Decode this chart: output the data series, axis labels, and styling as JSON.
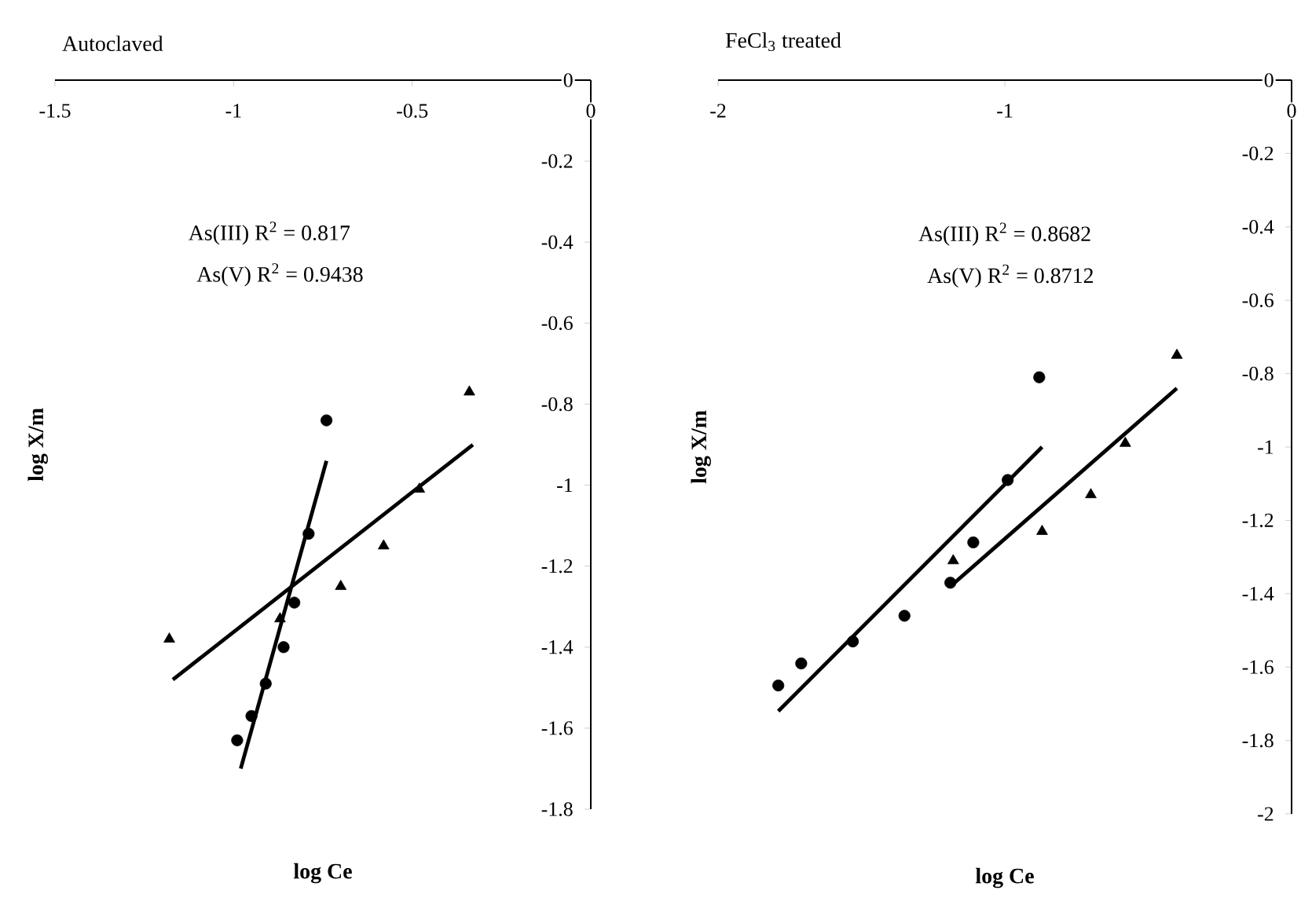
{
  "chart_data": [
    {
      "type": "scatter",
      "title": "Autoclaved",
      "xlabel": "log Ce",
      "ylabel": "log X/m",
      "annotations": [
        "As(III) R$^{2}$ = 0.817",
        "As(V) R$^{2}$ = 0.9438"
      ],
      "xlim": [
        -1.5,
        0
      ],
      "ylim": [
        -1.8,
        0
      ],
      "xticks": [
        -1.5,
        -1,
        -0.5,
        0
      ],
      "yticks": [
        0,
        -0.2,
        -0.4,
        -0.6,
        -0.8,
        -1,
        -1.2,
        -1.4,
        -1.6,
        -1.8
      ],
      "series": [
        {
          "marker": "circle",
          "color": "#000000",
          "x": [
            -0.99,
            -0.95,
            -0.91,
            -0.86,
            -0.83,
            -0.79,
            -0.74
          ],
          "values": [
            -1.63,
            -1.57,
            -1.49,
            -1.4,
            -1.29,
            -1.12,
            -0.84
          ]
        },
        {
          "marker": "triangle",
          "color": "#000000",
          "x": [
            -1.18,
            -0.87,
            -0.7,
            -0.58,
            -0.48,
            -0.34
          ],
          "values": [
            -1.38,
            -1.33,
            -1.25,
            -1.15,
            -1.01,
            -0.77
          ]
        },
        {
          "type": "line",
          "marker": "none",
          "color": "#000000",
          "x": [
            -0.98,
            -0.74
          ],
          "values": [
            -1.7,
            -0.94
          ]
        },
        {
          "type": "line",
          "marker": "none",
          "color": "#000000",
          "x": [
            -1.17,
            -0.33
          ],
          "values": [
            -1.48,
            -0.9
          ]
        }
      ]
    },
    {
      "type": "scatter",
      "title": "FeCl$_{3}$ treated",
      "xlabel": "log Ce",
      "ylabel": "log X/m",
      "annotations": [
        "As(III) R$^{2}$ = 0.8682",
        "As(V) R$^{2}$ = 0.8712"
      ],
      "xlim": [
        -2,
        0
      ],
      "ylim": [
        -2,
        0
      ],
      "xticks": [
        -2,
        -1,
        0
      ],
      "yticks": [
        0,
        -0.2,
        -0.4,
        -0.6,
        -0.8,
        -1,
        -1.2,
        -1.4,
        -1.6,
        -1.8,
        -2
      ],
      "series": [
        {
          "marker": "circle",
          "color": "#000000",
          "x": [
            -1.79,
            -1.71,
            -1.53,
            -1.35,
            -1.19,
            -1.11,
            -0.99,
            -0.88
          ],
          "values": [
            -1.65,
            -1.59,
            -1.53,
            -1.46,
            -1.37,
            -1.26,
            -1.09,
            -0.81
          ]
        },
        {
          "marker": "triangle",
          "color": "#000000",
          "x": [
            -1.18,
            -0.87,
            -0.7,
            -0.58,
            -0.4
          ],
          "values": [
            -1.31,
            -1.23,
            -1.13,
            -0.99,
            -0.75
          ]
        },
        {
          "type": "line",
          "marker": "none",
          "color": "#000000",
          "x": [
            -1.79,
            -0.87
          ],
          "values": [
            -1.72,
            -1.0
          ]
        },
        {
          "type": "line",
          "marker": "none",
          "color": "#000000",
          "x": [
            -1.19,
            -0.4
          ],
          "values": [
            -1.38,
            -0.84
          ]
        }
      ]
    }
  ]
}
